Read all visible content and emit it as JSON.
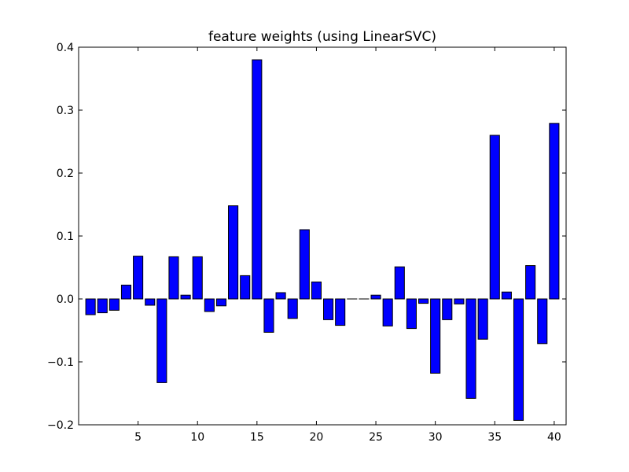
{
  "chart_data": {
    "type": "bar",
    "title": "feature weights (using LinearSVC)",
    "xlabel": "",
    "ylabel": "",
    "xlim": [
      0,
      41
    ],
    "ylim": [
      -0.2,
      0.4
    ],
    "x_ticks": [
      5,
      10,
      15,
      20,
      25,
      30,
      35,
      40
    ],
    "x_tick_labels": [
      "5",
      "10",
      "15",
      "20",
      "25",
      "30",
      "35",
      "40"
    ],
    "y_ticks": [
      -0.2,
      -0.1,
      0.0,
      0.1,
      0.2,
      0.3,
      0.4
    ],
    "y_tick_labels": [
      "−0.2",
      "−0.1",
      "0.0",
      "0.1",
      "0.2",
      "0.3",
      "0.4"
    ],
    "grid": false,
    "bar_color": "#0000ff",
    "edge_color": "#000000",
    "categories": [
      1,
      2,
      3,
      4,
      5,
      6,
      7,
      8,
      9,
      10,
      11,
      12,
      13,
      14,
      15,
      16,
      17,
      18,
      19,
      20,
      21,
      22,
      23,
      24,
      25,
      26,
      27,
      28,
      29,
      30,
      31,
      32,
      33,
      34,
      35,
      36,
      37,
      38,
      39,
      40
    ],
    "values": [
      -0.025,
      -0.022,
      -0.018,
      0.022,
      0.068,
      -0.01,
      -0.133,
      0.067,
      0.006,
      0.067,
      -0.02,
      -0.011,
      0.148,
      0.037,
      0.38,
      -0.053,
      0.01,
      -0.031,
      0.11,
      0.027,
      -0.033,
      -0.042,
      0.0,
      0.0,
      0.006,
      -0.043,
      0.051,
      -0.047,
      -0.007,
      -0.118,
      -0.033,
      -0.008,
      -0.158,
      -0.064,
      0.26,
      0.011,
      -0.193,
      0.053,
      -0.071,
      0.279
    ]
  }
}
